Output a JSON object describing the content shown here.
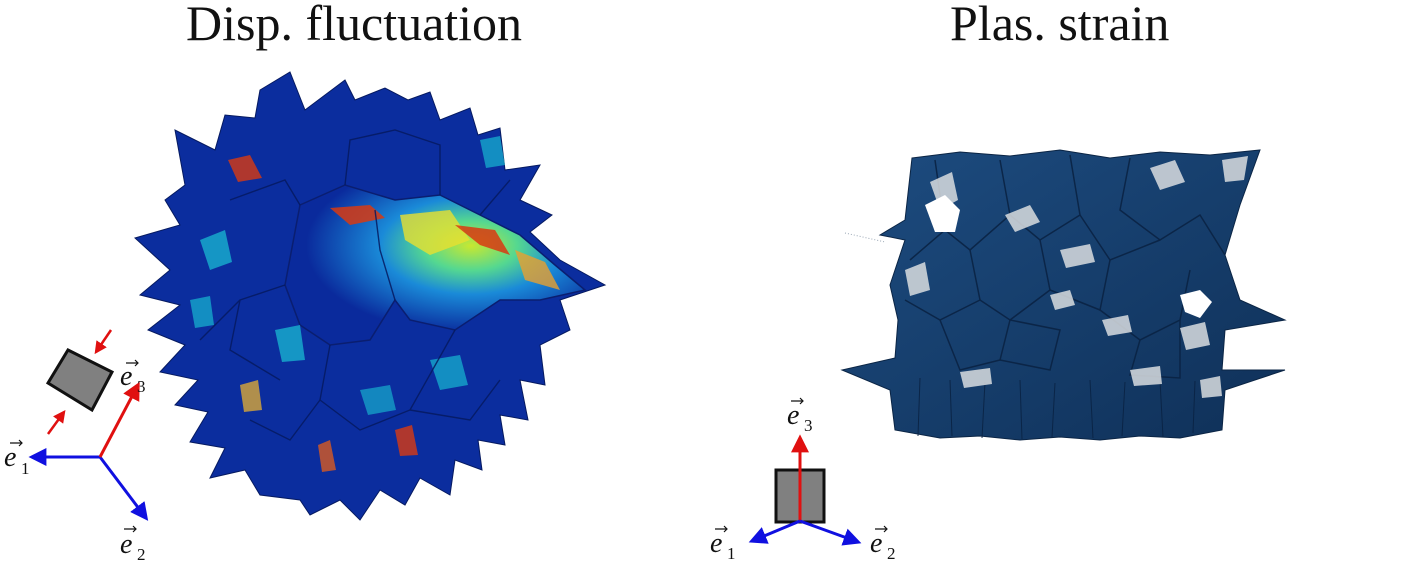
{
  "panels": [
    {
      "title": "Disp. fluctuation",
      "axes": {
        "e1": "e",
        "e1_sub": "1",
        "e2": "e",
        "e2_sub": "2",
        "e3": "e",
        "e3_sub": "3"
      },
      "loading": "compression",
      "colormap": "jet"
    },
    {
      "title": "Plas. strain",
      "axes": {
        "e1": "e",
        "e1_sub": "1",
        "e2": "e",
        "e2_sub": "2",
        "e3": "e",
        "e3_sub": "3"
      },
      "colormap": "blue-white"
    }
  ],
  "colors": {
    "axis_blue": "#1010e0",
    "axis_red": "#e01010",
    "cube_gray": "#808080",
    "left_base": "#0a2a9c",
    "left_mid": "#19c3d6",
    "left_hot": "#d83a12",
    "left_warm": "#e8e030",
    "right_base": "#17406e",
    "right_dark": "#0d2a4e",
    "right_light": "#d9dde0"
  }
}
